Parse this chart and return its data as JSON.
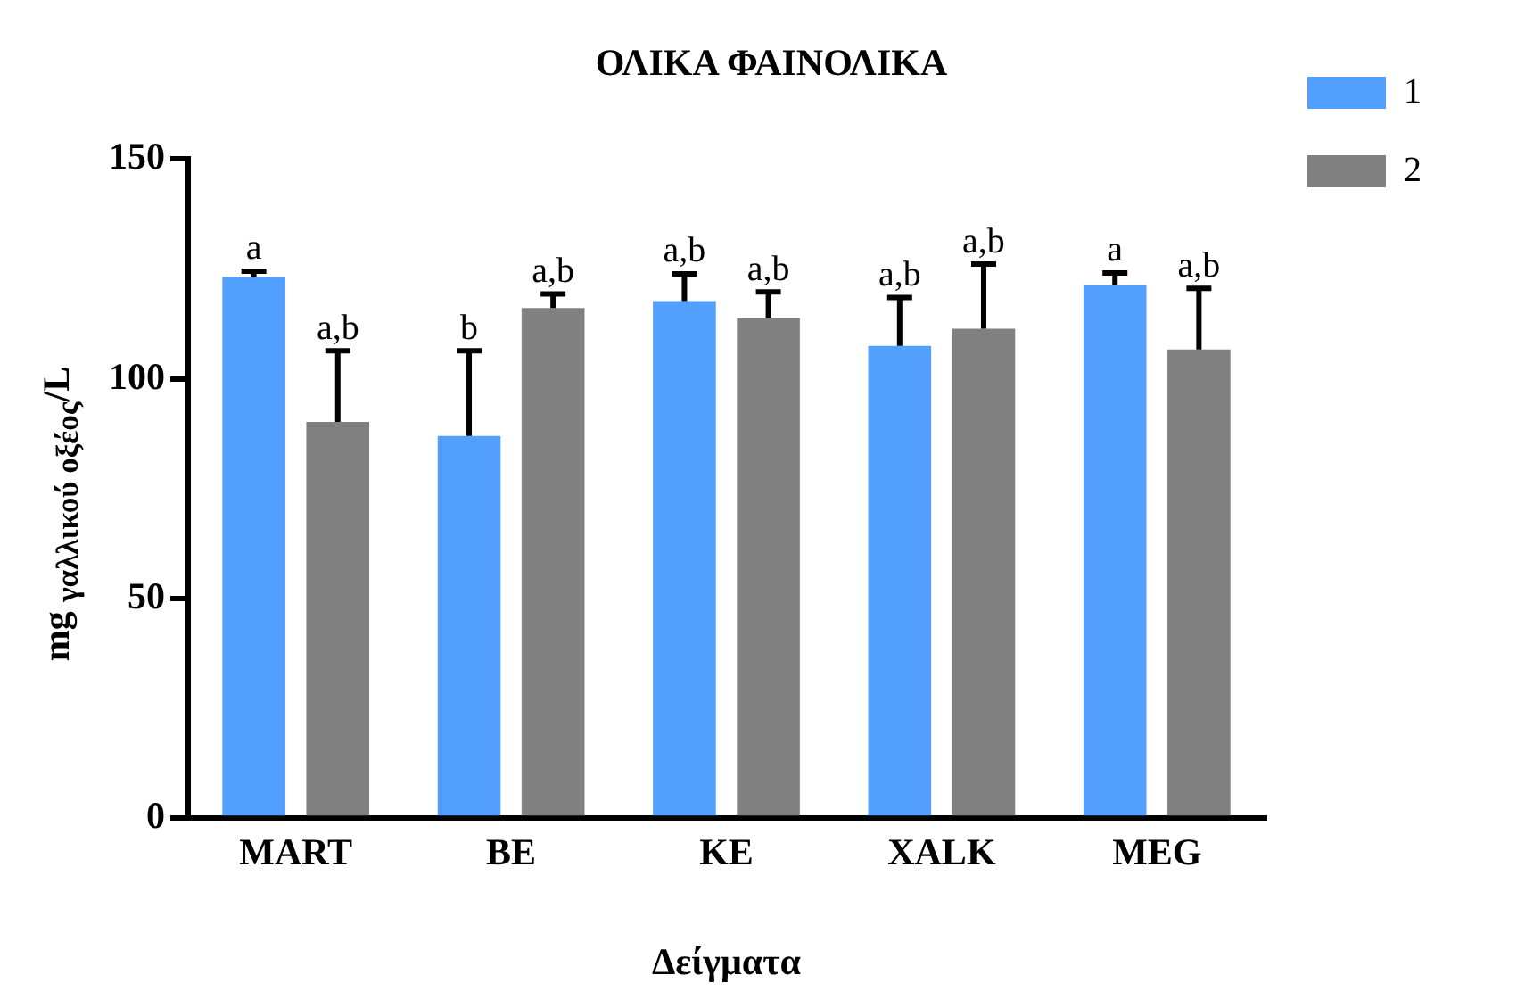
{
  "chart_data": {
    "type": "bar",
    "title": "ΟΛΙΚΑ ΦΑΙΝΟΛΙΚΑ",
    "xlabel": "Δείγματα",
    "ylabel": "mg $_{γαλλικού οξέος}$/L",
    "categories": [
      "MART",
      "BE",
      "KE",
      "XALK",
      "MEG"
    ],
    "series": [
      {
        "name": "1",
        "color": "#539ffd",
        "values": [
          123.2,
          87.0,
          117.7,
          107.5,
          121.3
        ],
        "errors": [
          [
            123.2,
            124.5
          ],
          [
            87.0,
            106.4
          ],
          [
            117.7,
            123.9
          ],
          [
            107.5,
            118.5
          ],
          [
            121.3,
            124.1
          ]
        ]
      },
      {
        "name": "2",
        "color": "#808080",
        "values": [
          90.2,
          116.1,
          113.8,
          111.4,
          106.7
        ],
        "errors": [
          [
            90.2,
            106.4
          ],
          [
            116.1,
            119.3
          ],
          [
            113.8,
            119.8
          ],
          [
            111.4,
            126.1
          ],
          [
            106.7,
            120.6
          ]
        ]
      }
    ],
    "ylim": [
      0,
      150
    ],
    "yticks": [
      0,
      50,
      100,
      150
    ],
    "legend": "top right",
    "annotations": [
      "a",
      "a,b",
      "b",
      "a,b",
      "a,b",
      "a,b",
      "a,b",
      "a,b",
      "a",
      "a,b"
    ]
  }
}
